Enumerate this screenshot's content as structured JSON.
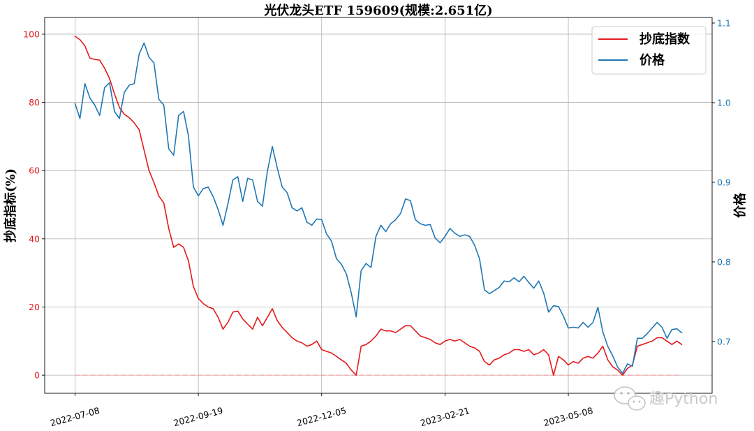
{
  "chart_data": {
    "type": "line",
    "title": "光伏龙头ETF 159609(规模:2.651亿)",
    "xlabel": "",
    "ylabel_left": "抄底指标(%)",
    "ylabel_right": "价格",
    "xlim": [
      -12.3,
      258.3
    ],
    "ylim_left": [
      -5.3,
      104.9
    ],
    "ylim_right": [
      0.635,
      1.107
    ],
    "yticks_left": [
      0,
      20,
      40,
      60,
      80,
      100
    ],
    "yticks_left_labels": [
      "0",
      "20",
      "40",
      "60",
      "80",
      "100"
    ],
    "yticks_right": [
      0.7,
      0.8,
      0.9,
      1.0,
      1.1
    ],
    "yticks_right_labels": [
      "0.7",
      "0.8",
      "0.9",
      "1.0",
      "1.1"
    ],
    "x_ticks": [
      {
        "index": 0,
        "label": "2022-07-08"
      },
      {
        "index": 50,
        "label": "2022-09-19"
      },
      {
        "index": 100,
        "label": "2022-12-05"
      },
      {
        "index": 150,
        "label": "2023-02-21"
      },
      {
        "index": 200,
        "label": "2023-05-08"
      }
    ],
    "grid": true,
    "legend_position": "top-right",
    "zero_line": {
      "value": 0,
      "color": "#f19b9b"
    },
    "x": [
      0,
      2,
      4,
      6,
      8,
      10,
      12,
      14,
      16,
      18,
      20,
      22,
      24,
      26,
      28,
      30,
      32,
      34,
      36,
      38,
      40,
      42,
      44,
      46,
      48,
      50,
      52,
      54,
      56,
      58,
      60,
      62,
      64,
      66,
      68,
      70,
      72,
      74,
      76,
      78,
      80,
      82,
      84,
      86,
      88,
      90,
      92,
      94,
      96,
      98,
      100,
      102,
      104,
      106,
      108,
      110,
      112,
      114,
      116,
      118,
      120,
      122,
      124,
      126,
      128,
      130,
      132,
      134,
      136,
      138,
      140,
      142,
      144,
      146,
      148,
      150,
      152,
      154,
      156,
      158,
      160,
      162,
      164,
      166,
      168,
      170,
      172,
      174,
      176,
      178,
      180,
      182,
      184,
      186,
      188,
      190,
      192,
      194,
      196,
      198,
      200,
      202,
      204,
      206,
      208,
      210,
      212,
      214,
      216,
      218,
      220,
      222,
      224,
      226,
      228,
      230,
      232,
      234,
      236,
      238,
      240,
      242,
      244,
      246
    ],
    "series": [
      {
        "name": "抄底指数",
        "y_axis": 0,
        "color": "#e41a1c",
        "values": [
          99.4,
          98.4,
          96.6,
          93.0,
          92.6,
          92.4,
          90.0,
          87.0,
          82.5,
          78.5,
          76.5,
          75.5,
          74.0,
          72.0,
          66.0,
          60.0,
          56.5,
          52.5,
          50.5,
          43.0,
          37.5,
          38.5,
          37.5,
          33.5,
          26.0,
          22.5,
          21.0,
          20.0,
          19.5,
          17.0,
          13.5,
          15.5,
          18.5,
          18.8,
          16.5,
          15.0,
          13.5,
          17.0,
          14.5,
          17.0,
          19.5,
          16.0,
          14.0,
          12.5,
          11.0,
          10.0,
          9.5,
          8.5,
          9.0,
          10.0,
          7.5,
          7.0,
          6.5,
          5.5,
          4.5,
          3.5,
          1.5,
          0.0,
          8.5,
          9.0,
          10.0,
          11.5,
          13.5,
          13.0,
          13.0,
          12.5,
          13.5,
          14.5,
          14.5,
          13.0,
          11.5,
          11.0,
          10.5,
          9.5,
          9.0,
          10.0,
          10.5,
          10.0,
          10.5,
          9.5,
          8.5,
          8.0,
          7.0,
          4.0,
          3.0,
          4.5,
          5.0,
          6.0,
          6.5,
          7.5,
          7.5,
          7.0,
          7.5,
          6.0,
          6.5,
          7.5,
          6.0,
          0.0,
          5.5,
          4.5,
          3.0,
          4.0,
          3.5,
          5.0,
          5.5,
          5.0,
          6.5,
          8.5,
          4.5,
          2.5,
          1.5,
          0.0,
          2.0,
          3.0,
          8.5,
          9.0,
          9.5,
          10.0,
          11.0,
          11.0,
          10.0,
          9.0,
          10.0,
          9.0
        ]
      },
      {
        "name": "价格",
        "y_axis": 1,
        "color": "#1f77b4",
        "values": [
          0.999,
          0.98,
          1.024,
          1.006,
          0.997,
          0.984,
          1.019,
          1.025,
          0.989,
          0.98,
          1.013,
          1.022,
          1.024,
          1.061,
          1.075,
          1.057,
          1.05,
          1.004,
          0.997,
          0.942,
          0.934,
          0.984,
          0.989,
          0.958,
          0.894,
          0.883,
          0.892,
          0.894,
          0.882,
          0.866,
          0.846,
          0.873,
          0.903,
          0.907,
          0.876,
          0.905,
          0.903,
          0.876,
          0.87,
          0.914,
          0.945,
          0.918,
          0.894,
          0.887,
          0.868,
          0.864,
          0.868,
          0.85,
          0.846,
          0.854,
          0.853,
          0.835,
          0.826,
          0.804,
          0.797,
          0.785,
          0.761,
          0.731,
          0.789,
          0.798,
          0.793,
          0.832,
          0.846,
          0.838,
          0.848,
          0.853,
          0.861,
          0.879,
          0.877,
          0.853,
          0.848,
          0.846,
          0.847,
          0.83,
          0.824,
          0.832,
          0.842,
          0.836,
          0.832,
          0.834,
          0.832,
          0.821,
          0.804,
          0.765,
          0.76,
          0.764,
          0.768,
          0.776,
          0.775,
          0.78,
          0.775,
          0.782,
          0.774,
          0.767,
          0.776,
          0.761,
          0.737,
          0.745,
          0.744,
          0.732,
          0.717,
          0.718,
          0.717,
          0.724,
          0.718,
          0.724,
          0.743,
          0.712,
          0.694,
          0.682,
          0.668,
          0.66,
          0.672,
          0.669,
          0.704,
          0.704,
          0.71,
          0.717,
          0.724,
          0.718,
          0.704,
          0.715,
          0.716,
          0.711
        ]
      }
    ]
  },
  "watermark": {
    "text": "趣Python",
    "icon": "wechat-icon"
  }
}
